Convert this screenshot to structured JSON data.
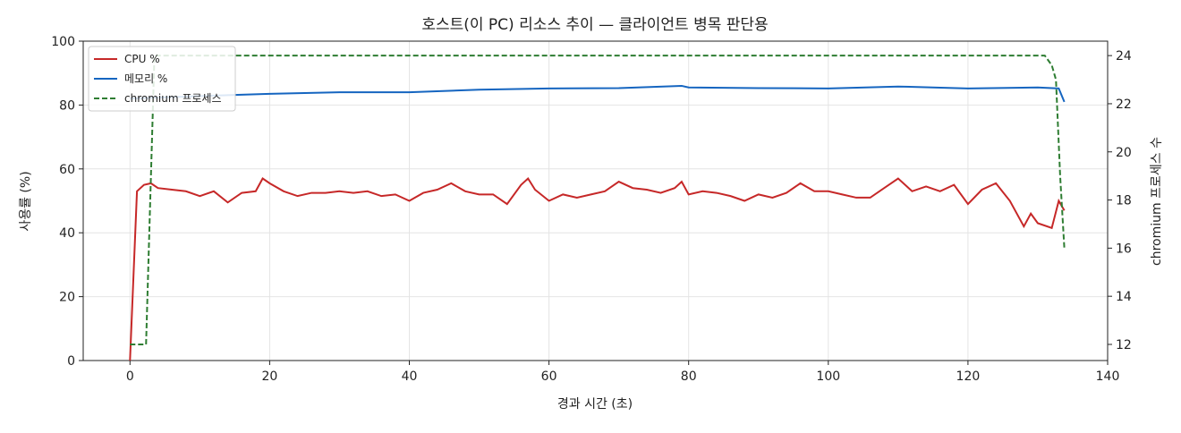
{
  "chart_data": {
    "type": "line",
    "title": "호스트(이 PC) 리소스 추이 — 클라이언트 병목 판단용",
    "x_label": "경과 시간 (초)",
    "y_label": "사용률 (%)",
    "y2_label": "chromium 프로세스 수",
    "xlim": [
      -6.7,
      140
    ],
    "xticks": [
      0,
      20,
      40,
      60,
      80,
      100,
      120,
      140
    ],
    "ylim": [
      0,
      100
    ],
    "yticks": [
      0,
      20,
      40,
      60,
      80,
      100
    ],
    "y2lim": [
      11.33,
      24.6
    ],
    "y2ticks": [
      12,
      14,
      16,
      18,
      20,
      22,
      24
    ],
    "grid": true,
    "legend": "upper-left",
    "series": [
      {
        "name": "CPU %",
        "color": "#c62828",
        "style": "solid",
        "x": [
          0,
          1,
          2,
          3,
          4,
          6,
          8,
          10,
          12,
          14,
          16,
          18,
          19,
          20,
          22,
          24,
          26,
          28,
          30,
          32,
          34,
          36,
          38,
          40,
          42,
          44,
          46,
          48,
          50,
          52,
          54,
          56,
          57,
          58,
          60,
          62,
          64,
          66,
          68,
          70,
          72,
          74,
          76,
          78,
          79,
          80,
          82,
          84,
          86,
          88,
          90,
          92,
          94,
          96,
          98,
          100,
          102,
          104,
          106,
          108,
          110,
          112,
          114,
          116,
          118,
          120,
          122,
          124,
          126,
          128,
          129,
          130,
          132,
          133,
          133.8
        ],
        "values": [
          0,
          53,
          55,
          55.5,
          54,
          53.5,
          53,
          51.5,
          53,
          49.5,
          52.5,
          53,
          57,
          55.5,
          53,
          51.5,
          52.5,
          52.5,
          53,
          52.5,
          53,
          51.5,
          52,
          50,
          52.5,
          53.5,
          55.5,
          53,
          52,
          52,
          49,
          55,
          57,
          53.5,
          50,
          52,
          51,
          52,
          53,
          56,
          54,
          53.5,
          52.5,
          54,
          56,
          52,
          53,
          52.5,
          51.5,
          50,
          52,
          51,
          52.5,
          55.5,
          53,
          53,
          52,
          51,
          51,
          54,
          57,
          53,
          54.5,
          53,
          55,
          49,
          53.5,
          55.5,
          50,
          42,
          46,
          43,
          41.5,
          50,
          47
        ]
      },
      {
        "name": "메모리 %",
        "color": "#1565c0",
        "style": "solid",
        "x": [
          0,
          10,
          20,
          30,
          40,
          50,
          60,
          70,
          79,
          80,
          90,
          100,
          110,
          120,
          130,
          133,
          133.8
        ],
        "values": [
          82,
          82.8,
          83.5,
          84,
          84,
          84.8,
          85.2,
          85.3,
          86,
          85.5,
          85.3,
          85.2,
          85.8,
          85.2,
          85.5,
          85.2,
          81
        ]
      },
      {
        "name": "chromium 프로세스",
        "color": "#2e7d32",
        "style": "dashed",
        "axis": "y2",
        "x": [
          0,
          2.3,
          3.5,
          131,
          132,
          132.6,
          133.2,
          133.8
        ],
        "values": [
          12,
          12,
          24,
          24,
          23.6,
          23,
          19,
          16
        ]
      }
    ]
  }
}
